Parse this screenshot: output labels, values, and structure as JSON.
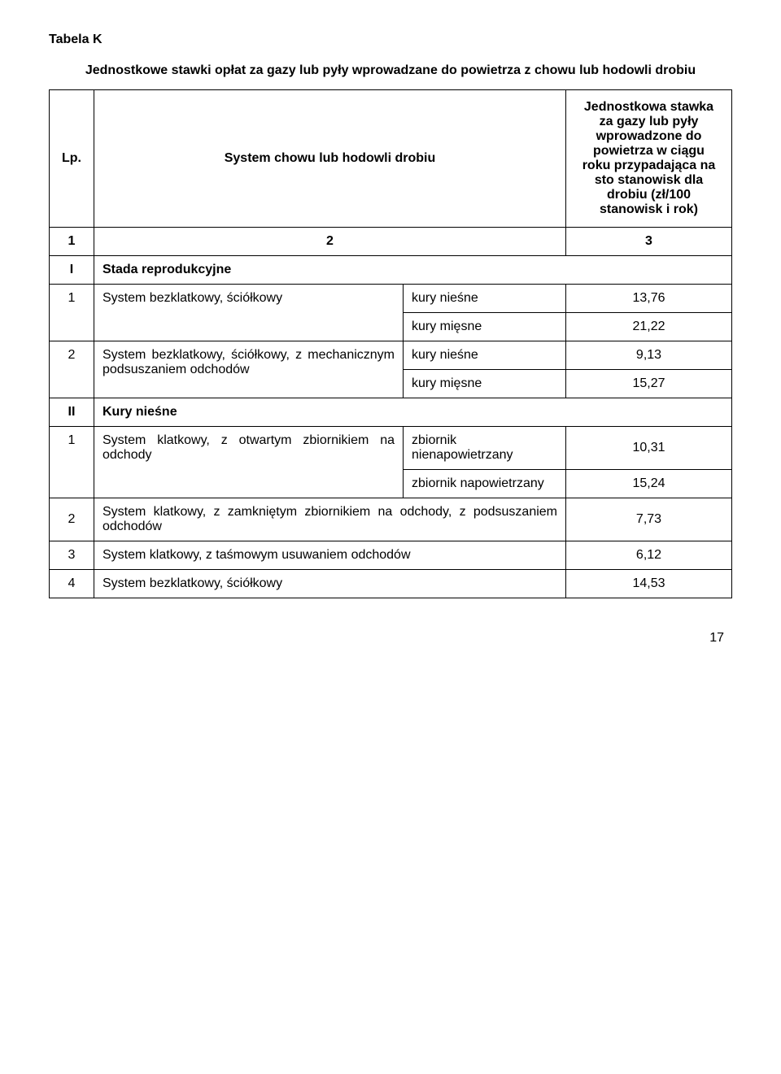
{
  "title": "Tabela K",
  "subtitle": "Jednostkowe stawki opłat za gazy lub pyły wprowadzane do powietrza z chowu lub hodowli drobiu",
  "header": {
    "lp": "Lp.",
    "system": "System chowu lub hodowli drobiu",
    "stawka": "Jednostkowa stawka za gazy lub pyły wprowadzone do powietrza w ciągu roku przypadająca na sto stanowisk dla drobiu (zł/100 stanowisk i rok)"
  },
  "numRow": {
    "c1": "1",
    "c2": "2",
    "c3": "3"
  },
  "sectionI": {
    "num": "I",
    "label": "Stada reprodukcyjne"
  },
  "rI1": {
    "num": "1",
    "desc": "System bezklatkowy, ściółkowy",
    "a_label": "kury nieśne",
    "a_val": "13,76",
    "b_label": "kury mięsne",
    "b_val": "21,22"
  },
  "rI2": {
    "num": "2",
    "desc": "System bezklatkowy, ściółkowy, z mechanicznym podsuszaniem odchodów",
    "a_label": "kury nieśne",
    "a_val": "9,13",
    "b_label": "kury mięsne",
    "b_val": "15,27"
  },
  "sectionII": {
    "num": "II",
    "label": "Kury nieśne"
  },
  "rII1": {
    "num": "1",
    "desc": "System klatkowy, z otwartym zbiornikiem na odchody",
    "a_label": "zbiornik nienapowietrzany",
    "a_val": "10,31",
    "b_label": "zbiornik napowietrzany",
    "b_val": "15,24"
  },
  "rII2": {
    "num": "2",
    "desc": "System klatkowy, z zamkniętym zbiornikiem na odchody, z podsuszaniem odchodów",
    "val": "7,73"
  },
  "rII3": {
    "num": "3",
    "desc": "System klatkowy, z taśmowym usuwaniem odchodów",
    "val": "6,12"
  },
  "rII4": {
    "num": "4",
    "desc": "System bezklatkowy, ściółkowy",
    "val": "14,53"
  },
  "pageNumber": "17"
}
